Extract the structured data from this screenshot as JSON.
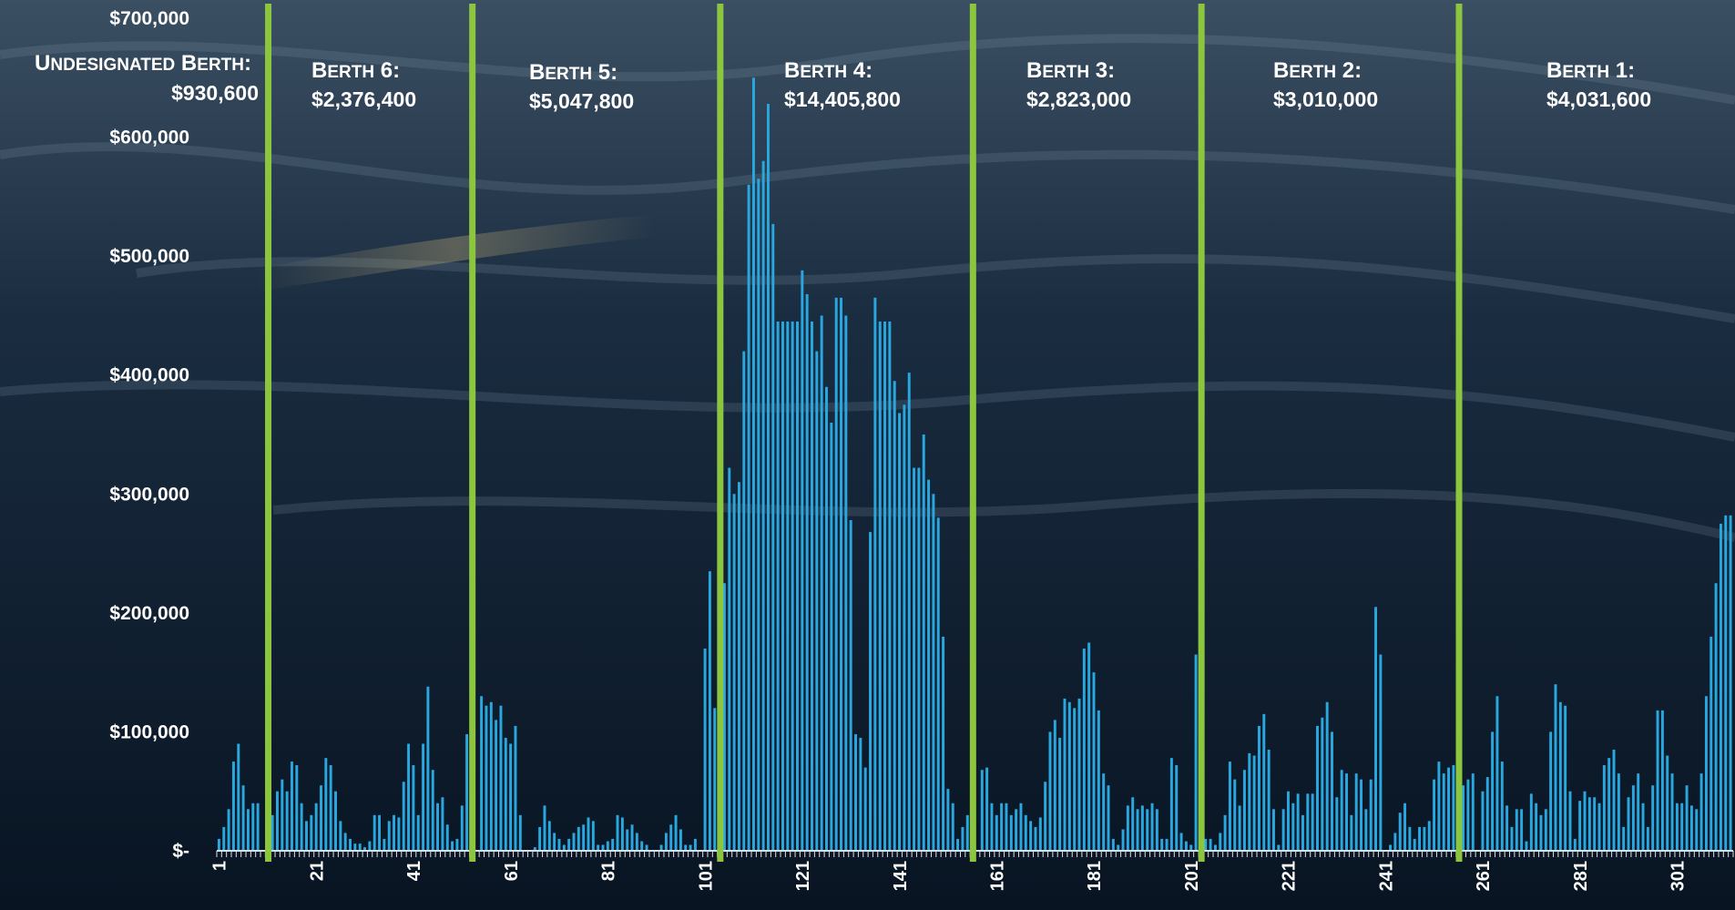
{
  "chart_data": {
    "type": "bar",
    "y_tick_labels": [
      "$-",
      "$100,000",
      "$200,000",
      "$300,000",
      "$400,000",
      "$500,000",
      "$600,000",
      "$700,000"
    ],
    "y_tick_values": [
      0,
      100000,
      200000,
      300000,
      400000,
      500000,
      600000,
      700000
    ],
    "ylim": [
      0,
      700000
    ],
    "x_tick_labels": [
      "1",
      "21",
      "41",
      "61",
      "81",
      "101",
      "121",
      "141",
      "161",
      "181",
      "201",
      "221",
      "241",
      "261",
      "281",
      "301"
    ],
    "x": "1..309",
    "values": [
      10000,
      20000,
      35000,
      75000,
      90000,
      55000,
      35000,
      40000,
      40000,
      0,
      0,
      30000,
      50000,
      60000,
      50000,
      75000,
      72000,
      40000,
      25000,
      30000,
      40000,
      55000,
      78000,
      72000,
      50000,
      25000,
      15000,
      10000,
      6000,
      6000,
      3000,
      8000,
      30000,
      30000,
      10000,
      25000,
      30000,
      28000,
      58000,
      90000,
      72000,
      30000,
      90000,
      138000,
      68000,
      40000,
      45000,
      22000,
      8000,
      10000,
      38000,
      98000,
      88000,
      0,
      130000,
      122000,
      125000,
      110000,
      122000,
      95000,
      90000,
      105000,
      30000,
      0,
      0,
      3000,
      20000,
      38000,
      25000,
      15000,
      10000,
      5000,
      10000,
      15000,
      20000,
      22000,
      28000,
      25000,
      5000,
      5000,
      8000,
      10000,
      30000,
      28000,
      18000,
      22000,
      15000,
      8000,
      5000,
      0,
      0,
      5000,
      15000,
      22000,
      30000,
      18000,
      5000,
      5000,
      10000,
      0,
      170000,
      235000,
      120000,
      160000,
      225000,
      322000,
      300000,
      310000,
      420000,
      560000,
      650000,
      565000,
      580000,
      628000,
      527000,
      445000,
      445000,
      445000,
      445000,
      445000,
      488000,
      468000,
      445000,
      420000,
      450000,
      390000,
      360000,
      465000,
      465000,
      450000,
      278000,
      98000,
      95000,
      70000,
      268000,
      465000,
      445000,
      445000,
      445000,
      395000,
      368000,
      375000,
      402000,
      322000,
      322000,
      350000,
      312000,
      300000,
      280000,
      180000,
      52000,
      40000,
      10000,
      20000,
      30000,
      38000,
      0,
      68000,
      70000,
      40000,
      30000,
      40000,
      40000,
      30000,
      35000,
      40000,
      30000,
      25000,
      20000,
      28000,
      58000,
      100000,
      110000,
      95000,
      128000,
      125000,
      120000,
      128000,
      170000,
      175000,
      150000,
      118000,
      65000,
      55000,
      10000,
      5000,
      18000,
      38000,
      45000,
      35000,
      38000,
      35000,
      40000,
      35000,
      10000,
      10000,
      78000,
      72000,
      15000,
      8000,
      5000,
      165000,
      165000,
      10000,
      10000,
      5000,
      15000,
      30000,
      75000,
      60000,
      38000,
      68000,
      82000,
      80000,
      105000,
      115000,
      85000,
      35000,
      5000,
      35000,
      50000,
      40000,
      48000,
      30000,
      48000,
      48000,
      105000,
      112000,
      125000,
      100000,
      45000,
      68000,
      65000,
      30000,
      65000,
      60000,
      35000,
      60000,
      205000,
      165000,
      0,
      5000,
      15000,
      32000,
      40000,
      20000,
      10000,
      20000,
      20000,
      25000,
      60000,
      75000,
      65000,
      70000,
      72000,
      72000,
      55000,
      60000,
      65000,
      0,
      50000,
      62000,
      100000,
      130000,
      75000,
      38000,
      20000,
      35000,
      35000,
      8000,
      48000,
      40000,
      30000,
      35000,
      100000,
      140000,
      125000,
      122000,
      50000,
      10000,
      42000,
      50000,
      45000,
      45000,
      40000,
      72000,
      78000,
      85000,
      65000,
      20000,
      45000,
      55000,
      65000,
      40000,
      20000,
      55000,
      118000,
      118000,
      80000,
      65000,
      40000,
      40000,
      55000,
      38000,
      35000,
      65000,
      130000,
      180000,
      225000,
      275000,
      282000,
      282000
    ],
    "bar_color": "#29a8e0",
    "divider_color": "#8cc63f",
    "divider_positions_x": [
      10.5,
      52.5,
      103.5,
      155.5,
      202.5,
      255.5
    ],
    "berths": [
      {
        "name": "Undesignated Berth:",
        "value": "$930,600"
      },
      {
        "name": "Berth 6:",
        "value": "$2,376,400"
      },
      {
        "name": "Berth 5:",
        "value": "$5,047,800"
      },
      {
        "name": "Berth 4:",
        "value": "$14,405,800"
      },
      {
        "name": "Berth 3:",
        "value": "$2,823,000"
      },
      {
        "name": "Berth 2:",
        "value": "$3,010,000"
      },
      {
        "name": "Berth 1:",
        "value": "$4,031,600"
      }
    ],
    "grid": false,
    "legend": "none",
    "title": "",
    "xlabel": "",
    "ylabel": ""
  }
}
